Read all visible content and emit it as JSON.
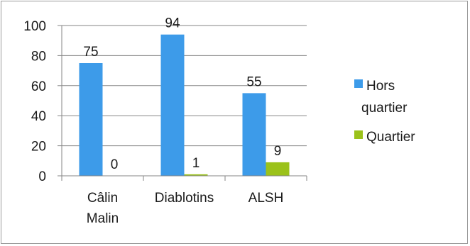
{
  "chart_data": {
    "type": "bar",
    "categories": [
      [
        "Câlin",
        "Malin"
      ],
      [
        "Diablotins"
      ],
      [
        "ALSH"
      ]
    ],
    "series": [
      {
        "name": "Hors quartier",
        "name_lines": [
          "Hors",
          "quartier"
        ],
        "color": "#3d9be9",
        "values": [
          75,
          94,
          55
        ]
      },
      {
        "name": "Quartier",
        "name_lines": [
          "Quartier"
        ],
        "color": "#9bc21a",
        "values": [
          0,
          1,
          9
        ]
      }
    ],
    "ylim": [
      0,
      100
    ],
    "yticks": [
      0,
      20,
      40,
      60,
      80,
      100
    ],
    "grid": true,
    "legend_position": "right",
    "title": "",
    "xlabel": "",
    "ylabel": ""
  }
}
